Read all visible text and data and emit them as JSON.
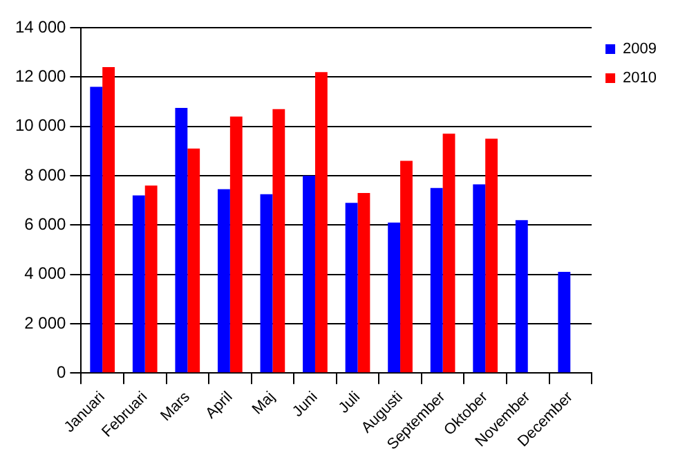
{
  "chart_data": {
    "type": "bar",
    "categories": [
      "Januari",
      "Februari",
      "Mars",
      "April",
      "Maj",
      "Juni",
      "Juli",
      "Augusti",
      "September",
      "Oktober",
      "November",
      "December"
    ],
    "series": [
      {
        "name": "2009",
        "color": "#0000ff",
        "values": [
          11600,
          7200,
          10750,
          7450,
          7250,
          8000,
          6900,
          6100,
          7500,
          7650,
          6200,
          4100
        ]
      },
      {
        "name": "2010",
        "color": "#ff0000",
        "values": [
          12400,
          7600,
          9100,
          10400,
          10700,
          12200,
          7300,
          8600,
          9700,
          9500,
          null,
          null
        ]
      }
    ],
    "ylim": [
      0,
      14000
    ],
    "yticks": [
      {
        "value": 0,
        "label": "0"
      },
      {
        "value": 2000,
        "label": "2 000"
      },
      {
        "value": 4000,
        "label": "4 000"
      },
      {
        "value": 6000,
        "label": "6 000"
      },
      {
        "value": 8000,
        "label": "8 000"
      },
      {
        "value": 10000,
        "label": "10 000"
      },
      {
        "value": 12000,
        "label": "12 000"
      },
      {
        "value": 14000,
        "label": "14 000"
      }
    ],
    "grid": "y",
    "legend": "top right"
  }
}
